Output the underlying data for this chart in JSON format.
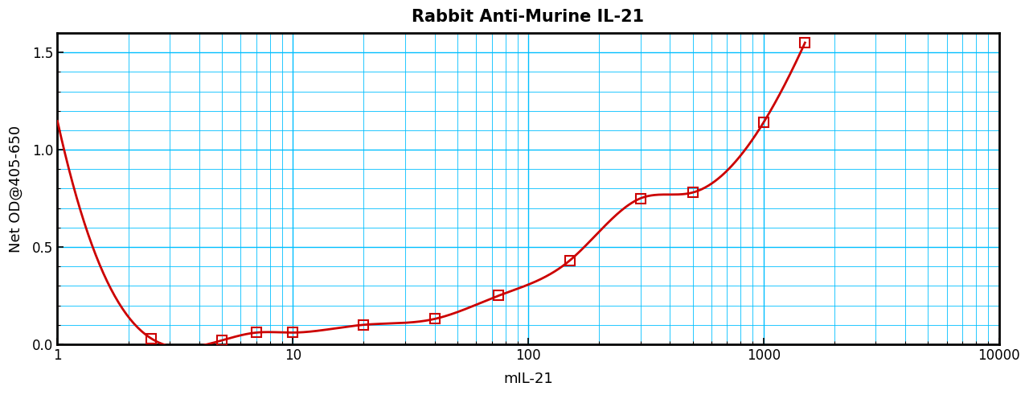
{
  "title": "Rabbit Anti-Murine IL-21",
  "xlabel": "mIL-21",
  "ylabel": "Net OD@405-650",
  "xlim": [
    1,
    10000
  ],
  "ylim": [
    0,
    1.6
  ],
  "yticks": [
    0,
    0.5,
    1.0,
    1.5
  ],
  "data_points_x": [
    2.5,
    5,
    7,
    10,
    20,
    40,
    75,
    150,
    300,
    500,
    1000,
    1500
  ],
  "data_points_y": [
    0.03,
    0.02,
    0.06,
    0.06,
    0.1,
    0.13,
    0.25,
    0.43,
    0.75,
    0.78,
    1.14,
    1.55
  ],
  "curve_color": "#cc0000",
  "marker_color": "#cc0000",
  "grid_color": "#00bfff",
  "background_color": "#ffffff",
  "title_fontsize": 15,
  "axis_label_fontsize": 13,
  "tick_fontsize": 12
}
